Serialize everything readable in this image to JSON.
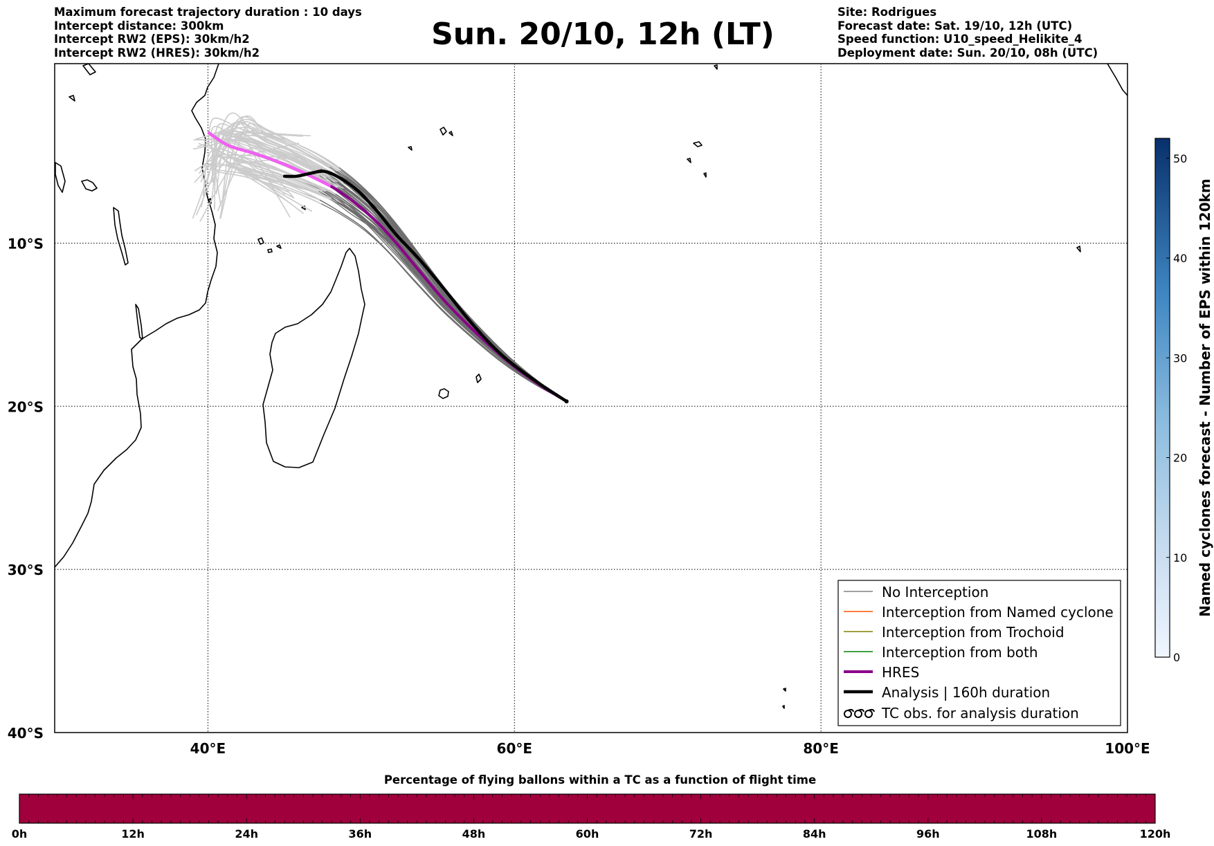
{
  "header": {
    "left_lines": [
      "Maximum forecast trajectory duration : 10 days",
      "Intercept distance: 300km",
      "Intercept RW2 (EPS):  30km/h2",
      "Intercept RW2 (HRES): 30km/h2"
    ],
    "title": "Sun. 20/10, 12h (LT)",
    "right_lines": [
      "Site: Rodrigues",
      "Forecast date: Sat. 19/10, 12h (UTC)",
      "Speed function: U10_speed_Helikite_4",
      "Deployment date: Sun. 20/10, 08h (UTC)"
    ]
  },
  "map": {
    "lon_range": [
      30,
      100
    ],
    "lat_range": [
      -40,
      1
    ],
    "lon_ticks": [
      {
        "value": 40,
        "label": "40°E"
      },
      {
        "value": 60,
        "label": "60°E"
      },
      {
        "value": 80,
        "label": "80°E"
      },
      {
        "value": 100,
        "label": "100°E"
      }
    ],
    "lat_ticks": [
      {
        "value": -10,
        "label": "10°S"
      },
      {
        "value": -20,
        "label": "20°S"
      },
      {
        "value": -30,
        "label": "30°S"
      },
      {
        "value": -40,
        "label": "40°S"
      }
    ],
    "launch_site": {
      "lon": 63.4,
      "lat": -19.7
    }
  },
  "trajectories": {
    "hres": [
      [
        63.4,
        -19.7
      ],
      [
        61.5,
        -18.6
      ],
      [
        59.5,
        -17.2
      ],
      [
        57.5,
        -15.5
      ],
      [
        55.5,
        -13.6
      ],
      [
        53.7,
        -11.6
      ],
      [
        52.2,
        -9.9
      ],
      [
        50.8,
        -8.5
      ],
      [
        49.4,
        -7.4
      ],
      [
        48,
        -6.5
      ],
      [
        46.5,
        -5.8
      ],
      [
        44.8,
        -5.1
      ],
      [
        43,
        -4.5
      ],
      [
        41.3,
        -4
      ],
      [
        40,
        -3.2
      ]
    ],
    "analysis": [
      [
        63.4,
        -19.7
      ],
      [
        61.3,
        -18.4
      ],
      [
        59.1,
        -16.8
      ],
      [
        57.2,
        -14.9
      ],
      [
        55.4,
        -12.8
      ],
      [
        53.8,
        -11
      ],
      [
        52.3,
        -9.5
      ],
      [
        51,
        -8
      ],
      [
        49.8,
        -6.8
      ],
      [
        48.6,
        -6
      ],
      [
        47.6,
        -5.6
      ],
      [
        46.8,
        -5.7
      ],
      [
        45.8,
        -5.9
      ],
      [
        45,
        -5.9
      ]
    ],
    "eps_count": 50
  },
  "legend": {
    "items": [
      {
        "label": "No Interception",
        "color": "#808080"
      },
      {
        "label": "Interception from Named cyclone",
        "color": "#ff5000"
      },
      {
        "label": "Interception from Trochoid",
        "color": "#808000"
      },
      {
        "label": "Interception from both",
        "color": "#008000"
      },
      {
        "label": "HRES",
        "color": "#8b008b"
      },
      {
        "label": "Analysis | 160h duration",
        "color": "#000000"
      },
      {
        "label": "TC obs. for analysis duration",
        "color": "#000000"
      }
    ]
  },
  "colorbar": {
    "title": "Named cyclones forecast - Number of EPS within 120km",
    "min": 0,
    "max": 52,
    "ticks": [
      0,
      10,
      20,
      30,
      40,
      50
    ]
  },
  "timeline": {
    "title": "Percentage of flying ballons within a TC as a function of flight time",
    "ticks": [
      "0h",
      "12h",
      "24h",
      "36h",
      "48h",
      "60h",
      "72h",
      "84h",
      "96h",
      "108h",
      "120h"
    ],
    "color": "#a0003c",
    "max_hours": 120
  }
}
